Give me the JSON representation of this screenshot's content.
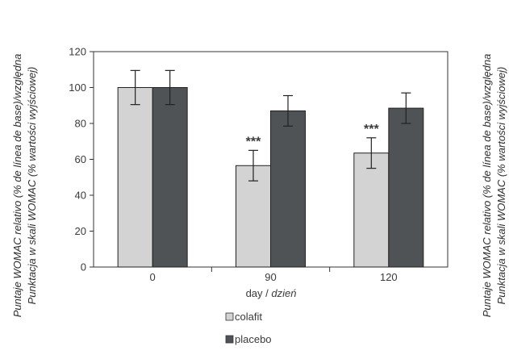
{
  "chart_data": {
    "type": "bar",
    "categories": [
      "0",
      "90",
      "120"
    ],
    "series": [
      {
        "name": "colafit",
        "values": [
          100,
          56.5,
          63.5
        ],
        "errors": [
          9.5,
          8.5,
          8.5
        ],
        "color": "#d3d3d3"
      },
      {
        "name": "placebo",
        "values": [
          100,
          87,
          88.5
        ],
        "errors": [
          9.5,
          8.5,
          8.5
        ],
        "color": "#4f5355"
      }
    ],
    "annotations": [
      {
        "category": "90",
        "text": "***"
      },
      {
        "category": "120",
        "text": "***"
      }
    ],
    "xlabel": {
      "plain": "day / ",
      "italic": "dzień"
    },
    "ylabel_line1": "Puntaje WOMAC relativo (% de línea de base)/względna",
    "ylabel_line2": "Punktacja w skali WOMAC (% wartości wyjściowej)",
    "ylim": [
      0,
      120
    ],
    "yticks": [
      0,
      20,
      40,
      60,
      80,
      100,
      120
    ],
    "grid": false,
    "legend": "below"
  }
}
